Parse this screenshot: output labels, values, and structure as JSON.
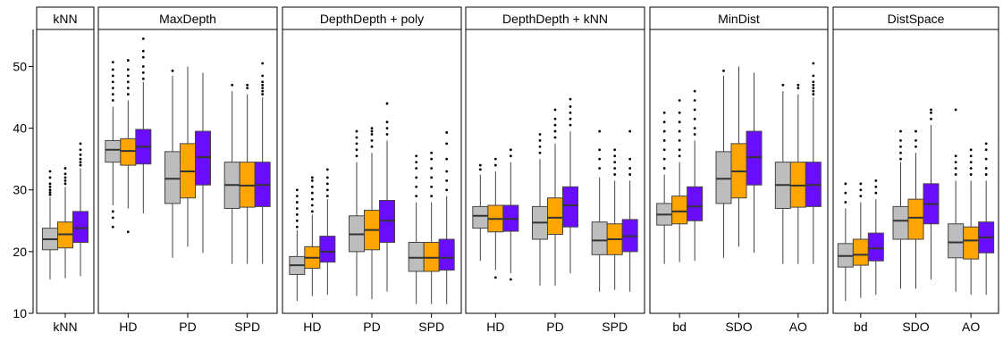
{
  "chart_data": {
    "type": "boxplot",
    "ylim": [
      10,
      56
    ],
    "yticks": [
      10,
      20,
      30,
      40,
      50
    ],
    "series_colors": [
      "#bdbdbd",
      "#ffa500",
      "#6a0dff"
    ],
    "grid": false,
    "legend": "none",
    "panels": [
      {
        "title": "kNN",
        "categories": [
          "kNN"
        ],
        "groups": [
          {
            "label": "kNN",
            "boxes": [
              {
                "q1": 20.3,
                "median": 22.0,
                "q3": 23.8,
                "whisker_low": 15.5,
                "whisker_high": 28.8,
                "outliers": [
                  29.2,
                  29.6,
                  30.0,
                  30.5,
                  31.0,
                  32.0,
                  33.0
                ]
              },
              {
                "q1": 20.6,
                "median": 22.8,
                "q3": 24.8,
                "whisker_low": 15.7,
                "whisker_high": 30.5,
                "outliers": [
                  31.0,
                  31.5,
                  32.0,
                  32.6,
                  33.5
                ]
              },
              {
                "q1": 21.5,
                "median": 23.8,
                "q3": 26.5,
                "whisker_low": 16.0,
                "whisker_high": 33.5,
                "outliers": [
                  34.0,
                  34.5,
                  35.0,
                  35.7,
                  36.5,
                  37.5
                ]
              }
            ]
          }
        ]
      },
      {
        "title": "MaxDepth",
        "categories": [
          "HD",
          "PD",
          "SPD"
        ],
        "groups": [
          {
            "label": "HD",
            "boxes": [
              {
                "q1": 34.5,
                "median": 36.5,
                "q3": 38.0,
                "whisker_low": 27.5,
                "whisker_high": 43.5,
                "outliers": [
                  24.0,
                  25.5,
                  26.5,
                  44.5,
                  45.5,
                  46.5,
                  47.5,
                  48.5,
                  49.5,
                  50.7
                ]
              },
              {
                "q1": 34.0,
                "median": 36.3,
                "q3": 38.3,
                "whisker_low": 27.0,
                "whisker_high": 44.5,
                "outliers": [
                  23.2,
                  45.5,
                  46.5,
                  47.5,
                  48.5,
                  49.5,
                  51.0
                ]
              },
              {
                "q1": 34.2,
                "median": 37.0,
                "q3": 39.8,
                "whisker_low": 26.2,
                "whisker_high": 47.5,
                "outliers": [
                  48.0,
                  49.0,
                  50.0,
                  51.5,
                  52.5,
                  54.5
                ]
              }
            ]
          },
          {
            "label": "PD",
            "boxes": [
              {
                "q1": 27.8,
                "median": 31.8,
                "q3": 36.2,
                "whisker_low": 19.0,
                "whisker_high": 48.5,
                "outliers": [
                  49.3
                ]
              },
              {
                "q1": 28.7,
                "median": 33.0,
                "q3": 37.5,
                "whisker_low": 20.8,
                "whisker_high": 50.0,
                "outliers": []
              },
              {
                "q1": 30.8,
                "median": 35.3,
                "q3": 39.5,
                "whisker_low": 19.8,
                "whisker_high": 49.0,
                "outliers": []
              }
            ]
          },
          {
            "label": "SPD",
            "boxes": [
              {
                "q1": 27.0,
                "median": 30.8,
                "q3": 34.5,
                "whisker_low": 18.0,
                "whisker_high": 46.0,
                "outliers": [
                  47.0
                ]
              },
              {
                "q1": 27.2,
                "median": 30.7,
                "q3": 34.5,
                "whisker_low": 18.0,
                "whisker_high": 45.5,
                "outliers": [
                  46.5,
                  47.0
                ]
              },
              {
                "q1": 27.3,
                "median": 30.8,
                "q3": 34.5,
                "whisker_low": 18.0,
                "whisker_high": 45.0,
                "outliers": [
                  45.5,
                  46.0,
                  46.5,
                  47.0,
                  47.5,
                  48.5,
                  50.5
                ]
              }
            ]
          }
        ]
      },
      {
        "title": "DepthDepth + poly",
        "categories": [
          "HD",
          "PD",
          "SPD"
        ],
        "groups": [
          {
            "label": "HD",
            "boxes": [
              {
                "q1": 16.3,
                "median": 17.8,
                "q3": 19.2,
                "whisker_low": 12.0,
                "whisker_high": 23.5,
                "outliers": [
                  24.0,
                  25.0,
                  26.0,
                  27.0,
                  28.0,
                  29.0,
                  30.0
                ]
              },
              {
                "q1": 17.3,
                "median": 19.0,
                "q3": 20.8,
                "whisker_low": 12.8,
                "whisker_high": 26.0,
                "outliers": [
                  26.5,
                  27.5,
                  28.5,
                  29.5,
                  30.5,
                  31.5,
                  32.0
                ]
              },
              {
                "q1": 18.3,
                "median": 20.0,
                "q3": 22.5,
                "whisker_low": 13.0,
                "whisker_high": 28.5,
                "outliers": [
                  29.0,
                  30.0,
                  31.0,
                  32.0,
                  33.3
                ]
              }
            ]
          },
          {
            "label": "PD",
            "boxes": [
              {
                "q1": 20.0,
                "median": 22.8,
                "q3": 25.8,
                "whisker_low": 12.8,
                "whisker_high": 34.5,
                "outliers": [
                  35.5,
                  36.5,
                  37.5,
                  38.5,
                  39.5
                ]
              },
              {
                "q1": 20.3,
                "median": 23.5,
                "q3": 26.7,
                "whisker_low": 12.3,
                "whisker_high": 36.0,
                "outliers": [
                  37.0,
                  38.0,
                  39.0,
                  39.5,
                  40.0
                ]
              },
              {
                "q1": 21.5,
                "median": 25.0,
                "q3": 28.3,
                "whisker_low": 13.5,
                "whisker_high": 38.0,
                "outliers": [
                  39.0,
                  40.0,
                  41.0,
                  44.0
                ]
              }
            ]
          },
          {
            "label": "SPD",
            "boxes": [
              {
                "q1": 16.8,
                "median": 19.0,
                "q3": 21.5,
                "whisker_low": 11.5,
                "whisker_high": 28.0,
                "outliers": [
                  29.0,
                  30.5,
                  32.0,
                  33.5,
                  34.5,
                  35.5
                ]
              },
              {
                "q1": 16.8,
                "median": 19.0,
                "q3": 21.5,
                "whisker_low": 11.5,
                "whisker_high": 28.0,
                "outliers": [
                  29.0,
                  30.5,
                  32.0,
                  33.5,
                  35.0,
                  36.0
                ]
              },
              {
                "q1": 17.0,
                "median": 19.0,
                "q3": 22.0,
                "whisker_low": 11.5,
                "whisker_high": 29.0,
                "outliers": [
                  30.0,
                  31.5,
                  33.0,
                  35.0,
                  37.5,
                  39.3
                ]
              }
            ]
          }
        ]
      },
      {
        "title": "DepthDepth + kNN",
        "categories": [
          "HD",
          "PD",
          "SPD"
        ],
        "groups": [
          {
            "label": "HD",
            "boxes": [
              {
                "q1": 23.8,
                "median": 25.8,
                "q3": 27.3,
                "whisker_low": 18.5,
                "whisker_high": 32.5,
                "outliers": [
                  33.3,
                  34.0
                ]
              },
              {
                "q1": 23.2,
                "median": 25.3,
                "q3": 27.5,
                "whisker_low": 17.0,
                "whisker_high": 33.0,
                "outliers": [
                  15.8,
                  34.0,
                  35.0
                ]
              },
              {
                "q1": 23.3,
                "median": 25.3,
                "q3": 27.5,
                "whisker_low": 16.5,
                "whisker_high": 34.5,
                "outliers": [
                  15.5,
                  35.5,
                  36.5
                ]
              }
            ]
          },
          {
            "label": "PD",
            "boxes": [
              {
                "q1": 22.0,
                "median": 24.7,
                "q3": 27.3,
                "whisker_low": 14.5,
                "whisker_high": 35.0,
                "outliers": [
                  36.0,
                  37.0,
                  38.0,
                  39.0
                ]
              },
              {
                "q1": 22.8,
                "median": 25.5,
                "q3": 28.7,
                "whisker_low": 14.5,
                "whisker_high": 37.5,
                "outliers": [
                  38.5,
                  39.5,
                  40.5,
                  41.5,
                  43.0
                ]
              },
              {
                "q1": 24.0,
                "median": 27.5,
                "q3": 30.5,
                "whisker_low": 16.5,
                "whisker_high": 39.5,
                "outliers": [
                  40.5,
                  41.5,
                  42.5,
                  43.5,
                  44.7
                ]
              }
            ]
          },
          {
            "label": "SPD",
            "boxes": [
              {
                "q1": 19.5,
                "median": 21.8,
                "q3": 24.8,
                "whisker_low": 13.5,
                "whisker_high": 32.0,
                "outliers": [
                  33.5,
                  35.0,
                  36.5,
                  39.5
                ]
              },
              {
                "q1": 19.5,
                "median": 22.0,
                "q3": 24.5,
                "whisker_low": 13.8,
                "whisker_high": 31.5,
                "outliers": [
                  32.5,
                  33.5,
                  34.5,
                  35.5,
                  36.5
                ]
              },
              {
                "q1": 20.0,
                "median": 22.5,
                "q3": 25.2,
                "whisker_low": 13.5,
                "whisker_high": 31.5,
                "outliers": [
                  32.5,
                  33.5,
                  35.0,
                  39.5
                ]
              }
            ]
          }
        ]
      },
      {
        "title": "MinDist",
        "categories": [
          "bd",
          "SDO",
          "AO"
        ],
        "groups": [
          {
            "label": "bd",
            "boxes": [
              {
                "q1": 24.3,
                "median": 26.0,
                "q3": 27.8,
                "whisker_low": 18.0,
                "whisker_high": 32.5,
                "outliers": [
                  33.5,
                  35.0,
                  36.5,
                  38.0,
                  39.5,
                  41.0,
                  42.5
                ]
              },
              {
                "q1": 24.5,
                "median": 26.5,
                "q3": 29.0,
                "whisker_low": 18.3,
                "whisker_high": 34.5,
                "outliers": [
                  35.5,
                  36.5,
                  38.0,
                  39.5,
                  41.0,
                  42.5,
                  44.5
                ]
              },
              {
                "q1": 25.0,
                "median": 27.3,
                "q3": 30.5,
                "whisker_low": 18.5,
                "whisker_high": 38.0,
                "outliers": [
                  39.0,
                  40.0,
                  41.5,
                  43.0,
                  44.5,
                  46.0
                ]
              }
            ]
          },
          {
            "label": "SDO",
            "boxes": [
              {
                "q1": 27.8,
                "median": 31.8,
                "q3": 36.2,
                "whisker_low": 19.0,
                "whisker_high": 48.5,
                "outliers": [
                  49.3
                ]
              },
              {
                "q1": 28.7,
                "median": 33.0,
                "q3": 37.5,
                "whisker_low": 20.8,
                "whisker_high": 50.0,
                "outliers": []
              },
              {
                "q1": 30.8,
                "median": 35.3,
                "q3": 39.5,
                "whisker_low": 19.8,
                "whisker_high": 49.0,
                "outliers": []
              }
            ]
          },
          {
            "label": "AO",
            "boxes": [
              {
                "q1": 27.0,
                "median": 30.8,
                "q3": 34.5,
                "whisker_low": 18.0,
                "whisker_high": 46.0,
                "outliers": [
                  47.0
                ]
              },
              {
                "q1": 27.2,
                "median": 30.7,
                "q3": 34.5,
                "whisker_low": 18.0,
                "whisker_high": 45.5,
                "outliers": [
                  46.5,
                  47.0
                ]
              },
              {
                "q1": 27.3,
                "median": 30.8,
                "q3": 34.5,
                "whisker_low": 18.0,
                "whisker_high": 45.0,
                "outliers": [
                  45.5,
                  46.0,
                  46.5,
                  47.0,
                  47.5,
                  48.5,
                  50.5
                ]
              }
            ]
          }
        ]
      },
      {
        "title": "DistSpace",
        "categories": [
          "bd",
          "SDO",
          "AO"
        ],
        "groups": [
          {
            "label": "bd",
            "boxes": [
              {
                "q1": 17.5,
                "median": 19.3,
                "q3": 21.3,
                "whisker_low": 12.0,
                "whisker_high": 27.0,
                "outliers": [
                  28.0,
                  29.5,
                  31.0
                ]
              },
              {
                "q1": 17.8,
                "median": 19.5,
                "q3": 22.0,
                "whisker_low": 12.5,
                "whisker_high": 28.0,
                "outliers": [
                  29.0,
                  30.0,
                  31.0
                ]
              },
              {
                "q1": 18.5,
                "median": 20.5,
                "q3": 23.0,
                "whisker_low": 13.0,
                "whisker_high": 28.5,
                "outliers": [
                  29.5,
                  30.5,
                  31.5
                ]
              }
            ]
          },
          {
            "label": "SDO",
            "boxes": [
              {
                "q1": 22.0,
                "median": 25.0,
                "q3": 27.3,
                "whisker_low": 14.0,
                "whisker_high": 34.5,
                "outliers": [
                  35.0,
                  36.0,
                  37.0,
                  38.0,
                  39.5
                ]
              },
              {
                "q1": 22.0,
                "median": 25.5,
                "q3": 28.5,
                "whisker_low": 14.0,
                "whisker_high": 36.0,
                "outliers": [
                  37.0,
                  38.0,
                  39.5
                ]
              },
              {
                "q1": 24.5,
                "median": 27.7,
                "q3": 31.0,
                "whisker_low": 15.5,
                "whisker_high": 40.5,
                "outliers": [
                  41.5,
                  42.5,
                  43.0
                ]
              }
            ]
          },
          {
            "label": "AO",
            "boxes": [
              {
                "q1": 19.0,
                "median": 21.5,
                "q3": 24.5,
                "whisker_low": 13.5,
                "whisker_high": 31.5,
                "outliers": [
                  32.5,
                  33.5,
                  34.5,
                  35.5,
                  43.0
                ]
              },
              {
                "q1": 18.8,
                "median": 21.8,
                "q3": 24.0,
                "whisker_low": 13.0,
                "whisker_high": 31.5,
                "outliers": [
                  32.5,
                  33.5,
                  34.5,
                  35.5,
                  36.5
                ]
              },
              {
                "q1": 19.8,
                "median": 22.3,
                "q3": 24.8,
                "whisker_low": 13.0,
                "whisker_high": 31.5,
                "outliers": [
                  32.5,
                  33.5,
                  35.0,
                  36.5,
                  37.5
                ]
              }
            ]
          }
        ]
      }
    ]
  }
}
